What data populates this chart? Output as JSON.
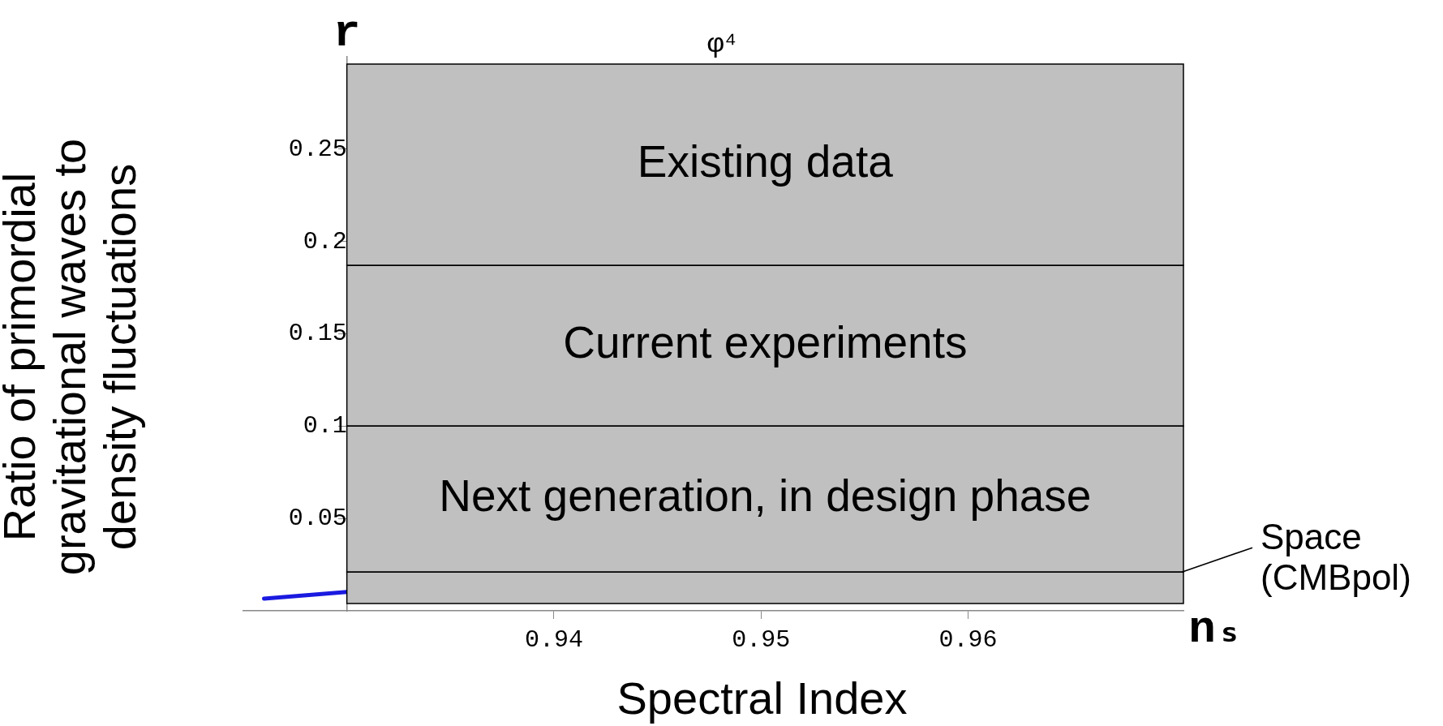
{
  "chart_data": {
    "type": "line",
    "xlabel": "Spectral Index",
    "ylabel": "Ratio of primordial gravitational waves to density fluctuations",
    "x": [
      0.926,
      0.93
    ],
    "series": [
      {
        "color": "#1a1ae0",
        "values": [
          0.0066,
          0.0102
        ]
      }
    ],
    "xlim": [
      0.925,
      0.9704
    ],
    "ylim": [
      0,
      0.3
    ],
    "xticks": [
      0.94,
      0.95,
      0.96
    ],
    "yticks": [
      0.05,
      0.1,
      0.15,
      0.2,
      0.25
    ],
    "grid": false,
    "legend": false,
    "marker": "none",
    "line_style": "solid",
    "bands": [
      {
        "axis": "y",
        "from": 0.187,
        "to": 0.296,
        "label": "Existing data",
        "color": "#c0c0c0"
      },
      {
        "axis": "y",
        "from": 0.1,
        "to": 0.187,
        "label": "Current experiments",
        "color": "#c0c0c0"
      },
      {
        "axis": "y",
        "from": 0.021,
        "to": 0.1,
        "label": "Next generation, in design phase",
        "color": "#c0c0c0"
      },
      {
        "axis": "y",
        "from": 0.004,
        "to": 0.021,
        "label": "Space (CMBpol)",
        "color": "#c0c0c0"
      }
    ],
    "annotations": [
      "r",
      "φ⁴",
      "nₛ"
    ]
  }
}
